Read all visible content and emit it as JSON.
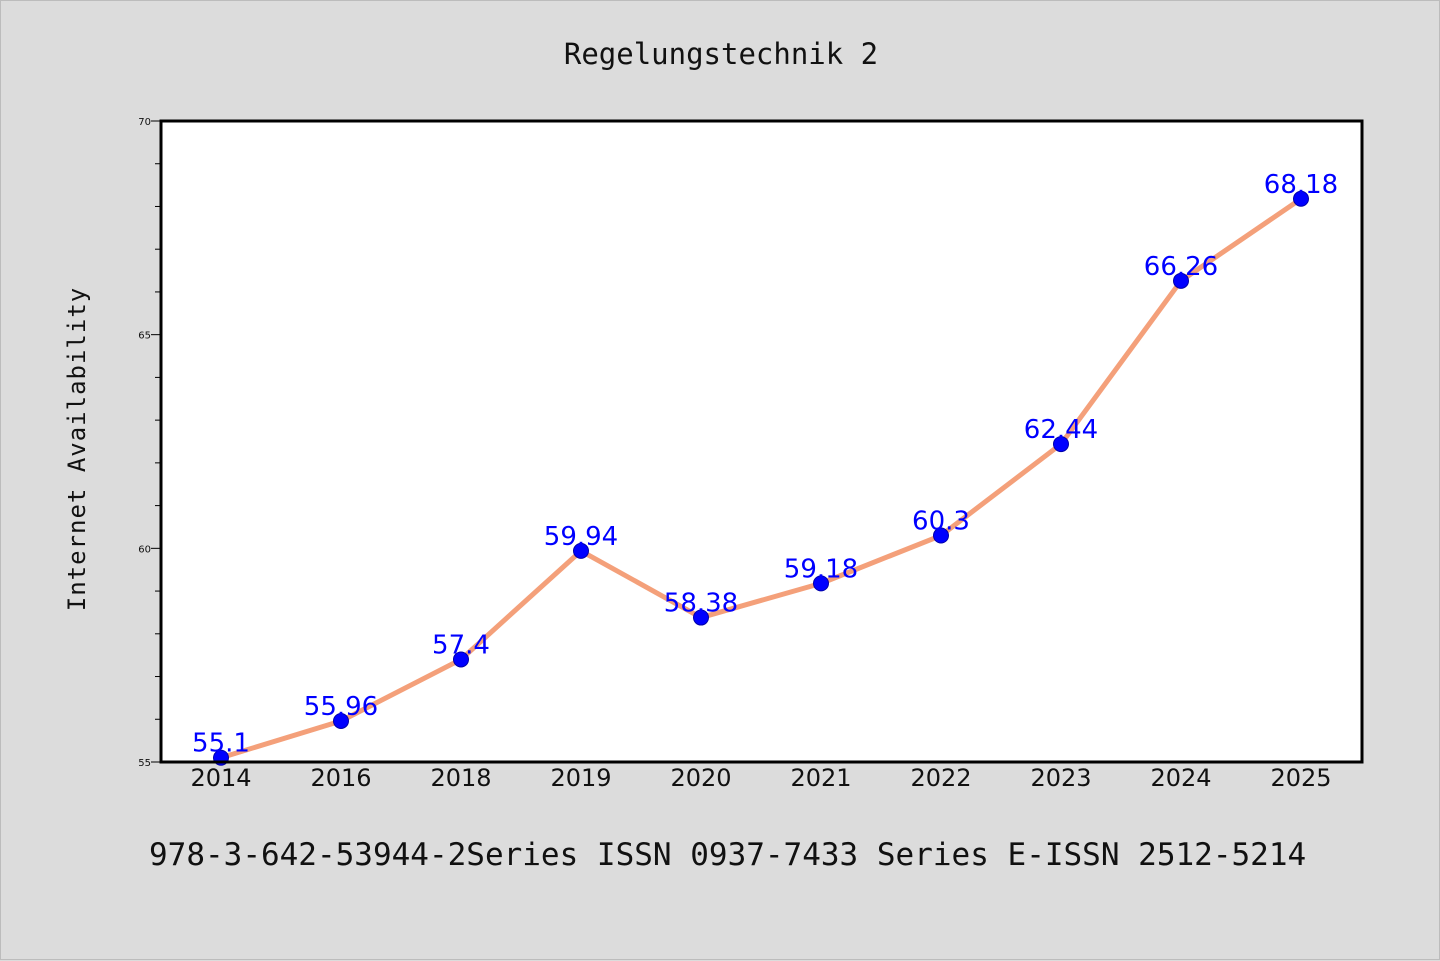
{
  "chart_data": {
    "type": "line",
    "title": "Regelungstechnik 2",
    "ylabel": "Internet Availability",
    "xlabel": "",
    "categories": [
      "2014",
      "2016",
      "2018",
      "2019",
      "2020",
      "2021",
      "2022",
      "2023",
      "2024",
      "2025"
    ],
    "series": [
      {
        "values": [
          55.1,
          55.96,
          57.4,
          59.94,
          58.38,
          59.18,
          60.3,
          62.44,
          66.26,
          68.18
        ],
        "labels": [
          "55.1",
          "55.96",
          "57.4",
          "59.94",
          "58.38",
          "59.18",
          "60.3",
          "62.44",
          "66.26",
          "68.18"
        ],
        "line_color": "#f4a07a",
        "marker_color": "#0000ff"
      }
    ],
    "ylim": [
      55,
      70
    ],
    "yticks": [
      "55",
      "60",
      "65",
      "70"
    ],
    "grid": false,
    "legend": "none"
  },
  "caption": "978-3-642-53944-2Series ISSN 0937-7433 Series E-ISSN 2512-5214"
}
